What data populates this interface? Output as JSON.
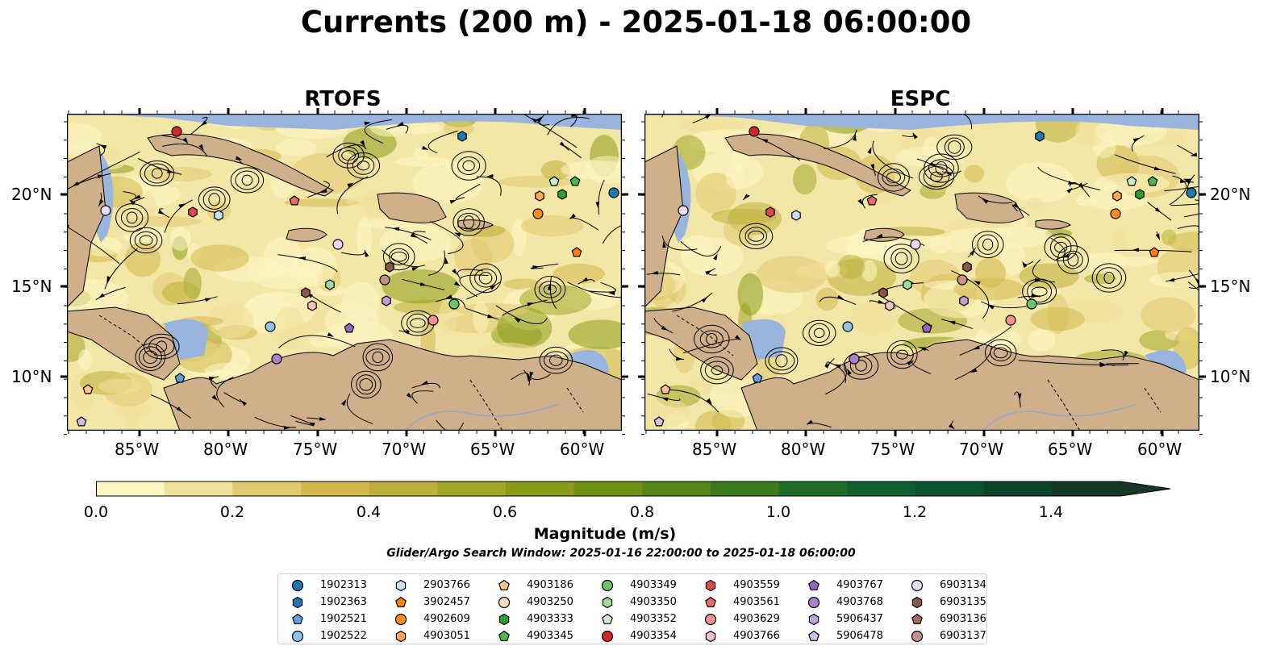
{
  "title": "Currents (200 m) - 2025-01-18 06:00:00",
  "panels": [
    {
      "title": "RTOFS"
    },
    {
      "title": "ESPC"
    }
  ],
  "lat_labels": [
    "20°N",
    "15°N",
    "10°N"
  ],
  "lon_labels": [
    "85°W",
    "80°W",
    "75°W",
    "70°W",
    "65°W",
    "60°W"
  ],
  "colorbar": {
    "label": "Magnitude (m/s)",
    "ticks": [
      "0.0",
      "0.2",
      "0.4",
      "0.6",
      "0.8",
      "1.0",
      "1.2",
      "1.4"
    ],
    "range": [
      0,
      1.5
    ],
    "extend": "max",
    "colors": [
      "#fdf6c3",
      "#f1e09a",
      "#e0c96e",
      "#d2b84c",
      "#bdb03b",
      "#a3a628",
      "#8a9c17",
      "#6f9113",
      "#558617",
      "#3b7a1d",
      "#1f6e2a",
      "#0f6030",
      "#0b5230",
      "#0d452a",
      "#163826"
    ]
  },
  "search_window": "Glider/Argo Search Window: 2025-01-16 22:00:00 to 2025-01-18 06:00:00",
  "legend": [
    {
      "id": "1902313",
      "color": "#1f77b4",
      "marker": "circle"
    },
    {
      "id": "1902363",
      "color": "#1f77b4",
      "marker": "hexagon"
    },
    {
      "id": "1902521",
      "color": "#5fa2dd",
      "marker": "pentagon"
    },
    {
      "id": "1902522",
      "color": "#8fc3ea",
      "marker": "circle"
    },
    {
      "id": "2903766",
      "color": "#c6e4f7",
      "marker": "hexagon"
    },
    {
      "id": "3902457",
      "color": "#ff7f0e",
      "marker": "pentagon"
    },
    {
      "id": "4902609",
      "color": "#ff8c24",
      "marker": "circle"
    },
    {
      "id": "4903051",
      "color": "#ffa85c",
      "marker": "hexagon"
    },
    {
      "id": "4903186",
      "color": "#ffc48f",
      "marker": "pentagon"
    },
    {
      "id": "4903250",
      "color": "#ffdcbd",
      "marker": "circle"
    },
    {
      "id": "4903333",
      "color": "#2ca02c",
      "marker": "hexagon"
    },
    {
      "id": "4903345",
      "color": "#4cb84c",
      "marker": "pentagon"
    },
    {
      "id": "4903349",
      "color": "#6cc46c",
      "marker": "circle"
    },
    {
      "id": "4903350",
      "color": "#9ddb9d",
      "marker": "hexagon"
    },
    {
      "id": "4903352",
      "color": "#c9f0c9",
      "marker": "pentagon"
    },
    {
      "id": "4903354",
      "color": "#d62728",
      "marker": "circle"
    },
    {
      "id": "4903559",
      "color": "#e04848",
      "marker": "hexagon"
    },
    {
      "id": "4903561",
      "color": "#ea6b6b",
      "marker": "pentagon"
    },
    {
      "id": "4903629",
      "color": "#f29393",
      "marker": "circle"
    },
    {
      "id": "4903766",
      "color": "#f8c0c0",
      "marker": "hexagon"
    },
    {
      "id": "4903767",
      "color": "#9467bd",
      "marker": "pentagon"
    },
    {
      "id": "4903768",
      "color": "#a981cc",
      "marker": "circle"
    },
    {
      "id": "5906437",
      "color": "#bf9fdc",
      "marker": "hexagon"
    },
    {
      "id": "5906478",
      "color": "#d5bdea",
      "marker": "pentagon"
    },
    {
      "id": "6903134",
      "color": "#ebdcf6",
      "marker": "circle"
    },
    {
      "id": "6903135",
      "color": "#8c564b",
      "marker": "hexagon"
    },
    {
      "id": "6903136",
      "color": "#a46a5e",
      "marker": "pentagon"
    },
    {
      "id": "6903137",
      "color": "#c49289",
      "marker": "circle"
    }
  ],
  "map_colors": {
    "land": "#cfb08a",
    "water": "#99b5dd"
  }
}
